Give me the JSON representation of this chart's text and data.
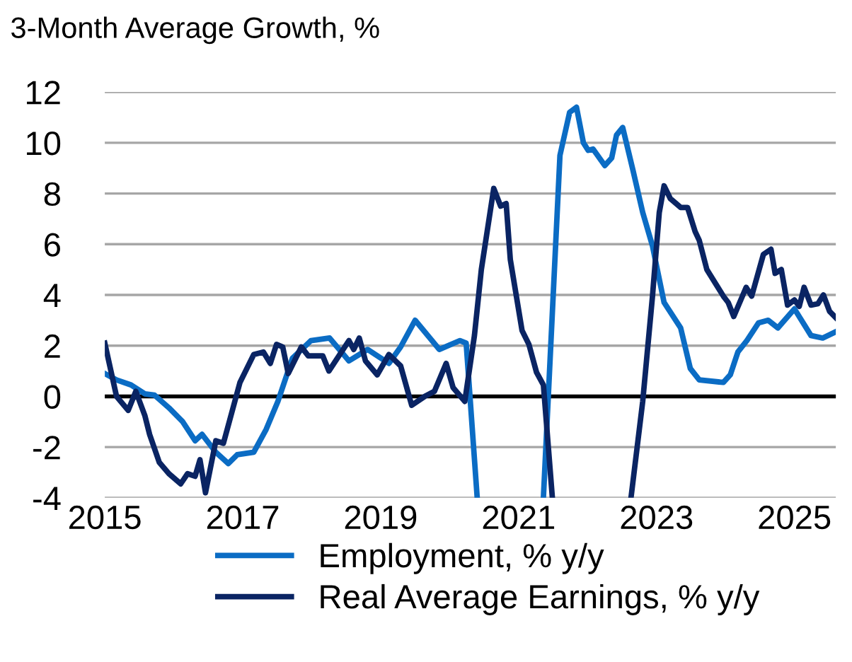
{
  "chart_data": {
    "type": "line",
    "title": "3-Month Average Growth, %",
    "xlim": [
      2015,
      2025.6
    ],
    "xticks": [
      2015,
      2017,
      2019,
      2021,
      2023,
      2025
    ],
    "ylim": [
      -4,
      12
    ],
    "yticks": [
      -4,
      -2,
      0,
      2,
      4,
      6,
      8,
      10,
      12
    ],
    "grid": "y",
    "legend": "bottom",
    "marker": "none",
    "line_style": "solid",
    "ref_lines": [
      {
        "axis": "y",
        "value": 0,
        "color": "#000000"
      }
    ],
    "series": [
      {
        "name": "Employment, % y/y",
        "color": "#0b6cc4",
        "x": [
          2015.0,
          2015.17,
          2015.38,
          2015.58,
          2015.72,
          2015.93,
          2016.13,
          2016.31,
          2016.41,
          2016.61,
          2016.79,
          2016.92,
          2017.16,
          2017.34,
          2017.51,
          2017.72,
          2017.99,
          2018.26,
          2018.54,
          2018.81,
          2019.12,
          2019.29,
          2019.5,
          2019.85,
          2020.15,
          2020.24,
          2020.4,
          2020.9,
          2021.36,
          2021.6,
          2021.74,
          2021.84,
          2021.94,
          2022.01,
          2022.08,
          2022.25,
          2022.35,
          2022.42,
          2022.51,
          2022.66,
          2022.8,
          2022.94,
          2023.11,
          2023.35,
          2023.49,
          2023.62,
          2023.97,
          2024.07,
          2024.18,
          2024.31,
          2024.48,
          2024.62,
          2024.76,
          2025.0,
          2025.24,
          2025.41,
          2025.6
        ],
        "values": [
          0.9,
          0.65,
          0.45,
          0.1,
          0.05,
          -0.45,
          -1.0,
          -1.75,
          -1.5,
          -2.2,
          -2.65,
          -2.3,
          -2.2,
          -1.3,
          -0.2,
          1.5,
          2.2,
          2.3,
          1.4,
          1.85,
          1.3,
          1.95,
          3.0,
          1.85,
          2.2,
          2.1,
          -4,
          null,
          -4,
          9.5,
          11.2,
          11.4,
          10.0,
          9.7,
          9.75,
          9.1,
          9.4,
          10.3,
          10.6,
          8.9,
          7.25,
          5.95,
          3.7,
          2.7,
          1.1,
          0.65,
          0.55,
          0.85,
          1.75,
          2.2,
          2.9,
          3.0,
          2.7,
          3.45,
          2.4,
          2.3,
          2.55
        ]
      },
      {
        "name": "Real Average Earnings, % y/y",
        "color": "#0a2463",
        "x": [
          2015.0,
          2015.17,
          2015.34,
          2015.45,
          2015.58,
          2015.65,
          2015.79,
          2015.93,
          2016.1,
          2016.2,
          2016.31,
          2016.38,
          2016.46,
          2016.61,
          2016.72,
          2016.96,
          2017.16,
          2017.3,
          2017.4,
          2017.49,
          2017.58,
          2017.66,
          2017.85,
          2017.95,
          2018.16,
          2018.25,
          2018.54,
          2018.61,
          2018.69,
          2018.78,
          2018.95,
          2019.12,
          2019.29,
          2019.45,
          2019.64,
          2019.78,
          2019.95,
          2020.05,
          2020.22,
          2020.36,
          2020.46,
          2020.64,
          2020.74,
          2020.82,
          2020.88,
          2021.05,
          2021.15,
          2021.26,
          2021.36,
          2021.49,
          2022.0,
          2022.63,
          2022.8,
          2022.94,
          2023.04,
          2023.11,
          2023.2,
          2023.35,
          2023.45,
          2023.56,
          2023.62,
          2023.73,
          2023.97,
          2024.04,
          2024.12,
          2024.3,
          2024.38,
          2024.55,
          2024.66,
          2024.72,
          2024.81,
          2024.9,
          2025.0,
          2025.07,
          2025.14,
          2025.24,
          2025.34,
          2025.42,
          2025.51,
          2025.6
        ],
        "values": [
          2.1,
          0.0,
          -0.55,
          0.2,
          -0.75,
          -1.5,
          -2.6,
          -3.05,
          -3.45,
          -3.05,
          -3.15,
          -2.5,
          -3.8,
          -1.75,
          -1.85,
          0.55,
          1.65,
          1.75,
          1.3,
          2.05,
          1.95,
          0.9,
          1.95,
          1.6,
          1.6,
          1.0,
          2.2,
          1.85,
          2.3,
          1.4,
          0.85,
          1.65,
          1.2,
          -0.35,
          0.0,
          0.2,
          1.3,
          0.35,
          -0.2,
          2.4,
          5.0,
          8.2,
          7.5,
          7.6,
          5.4,
          2.6,
          2.05,
          0.95,
          0.45,
          -4,
          null,
          -4,
          -0.2,
          3.9,
          7.25,
          8.3,
          7.8,
          7.45,
          7.45,
          6.5,
          6.15,
          5.0,
          3.95,
          3.7,
          3.15,
          4.3,
          3.95,
          5.6,
          5.8,
          4.85,
          5.0,
          3.6,
          3.8,
          3.55,
          4.3,
          3.6,
          3.65,
          4.0,
          3.35,
          3.1
        ]
      }
    ]
  }
}
